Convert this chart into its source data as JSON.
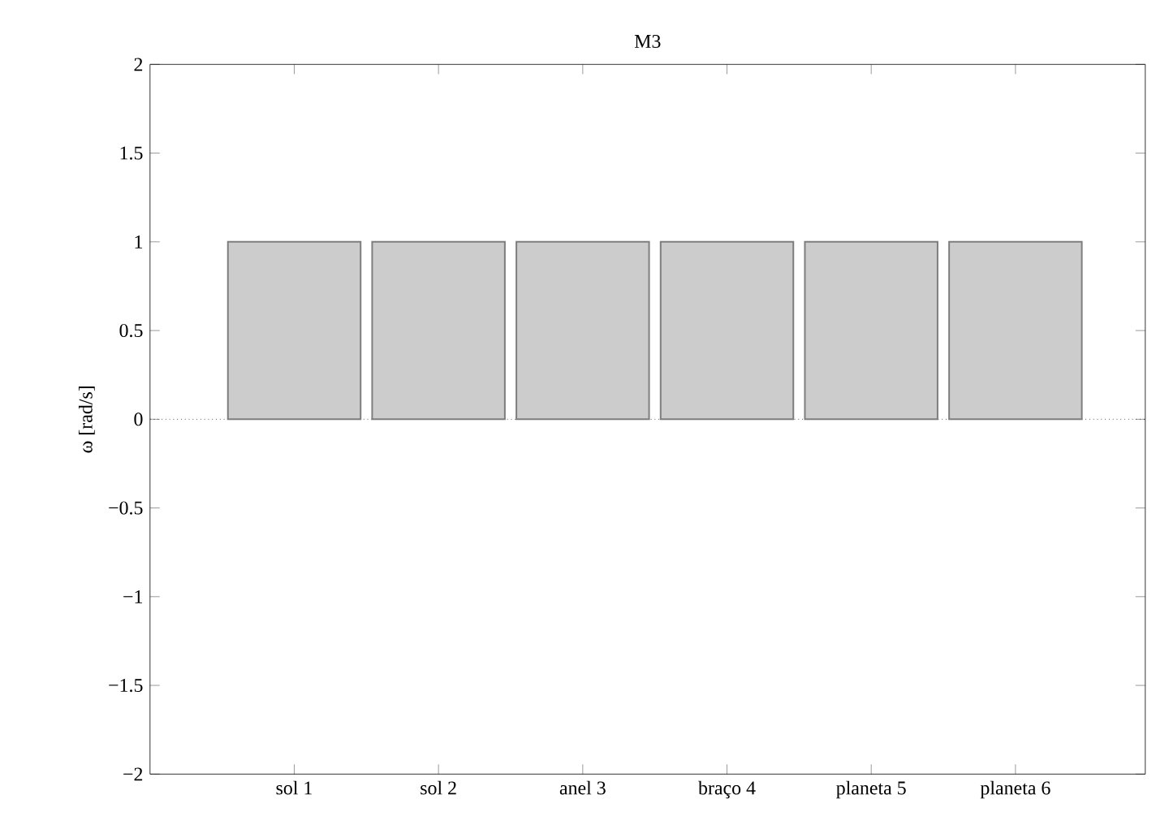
{
  "chart_data": {
    "type": "bar",
    "title": "M3",
    "ylabel": "ω [rad/s]",
    "categories": [
      "sol 1",
      "sol 2",
      "anel 3",
      "braço 4",
      "planeta 5",
      "planeta 6"
    ],
    "values": [
      1,
      1,
      1,
      1,
      1,
      1
    ],
    "color": "#cccccc",
    "ylim": [
      -2,
      2
    ],
    "yticks": [
      {
        "value": -2,
        "label": "−2"
      },
      {
        "value": -1.5,
        "label": "−1.5"
      },
      {
        "value": -1,
        "label": "−1"
      },
      {
        "value": -0.5,
        "label": "−0.5"
      },
      {
        "value": 0,
        "label": "0"
      },
      {
        "value": 0.5,
        "label": "0.5"
      },
      {
        "value": 1,
        "label": "1"
      },
      {
        "value": 1.5,
        "label": "1.5"
      },
      {
        "value": 2,
        "label": "2"
      }
    ],
    "ref_lines": [
      {
        "axis": "y",
        "value": 0,
        "line_style": "dotted",
        "color": "#000000"
      }
    ]
  }
}
